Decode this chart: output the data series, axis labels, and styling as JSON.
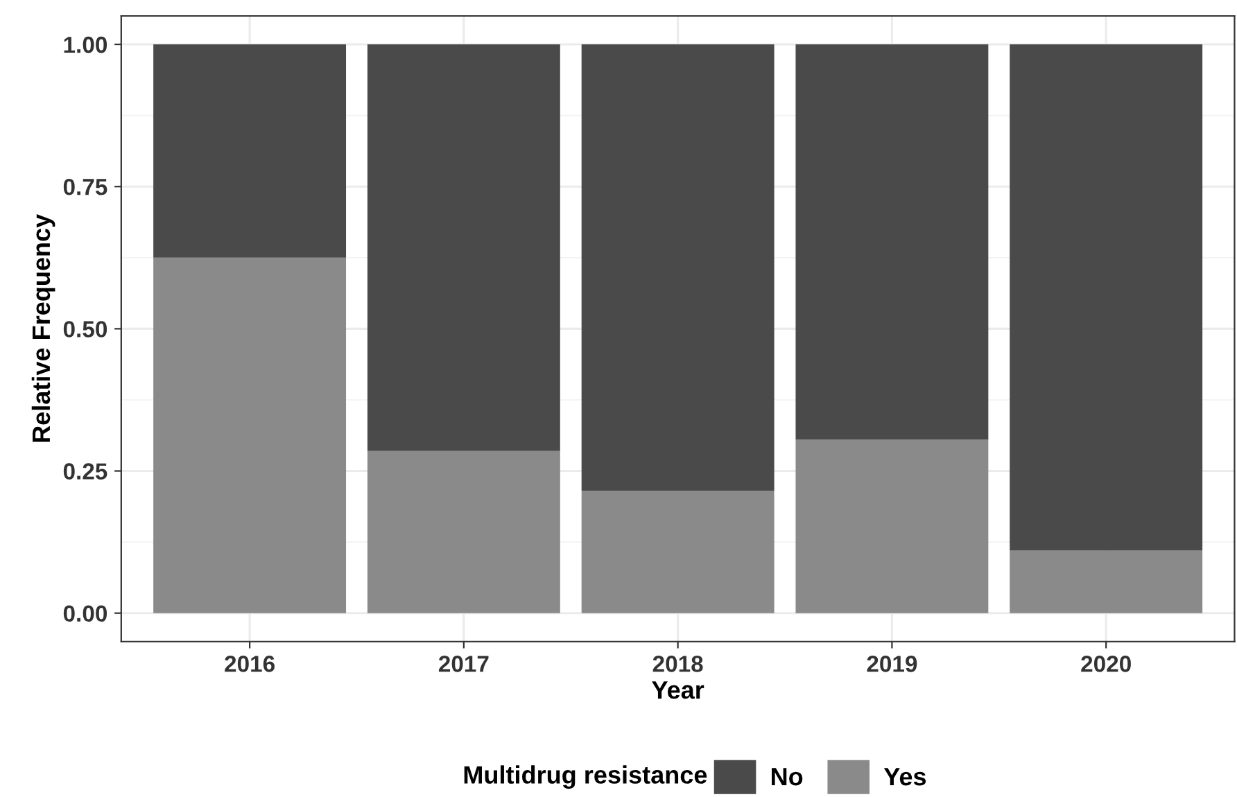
{
  "chart_data": {
    "type": "bar",
    "stacked": true,
    "xlabel": "Year",
    "ylabel": "Relative Frequency",
    "legend_title": "Multidrug resistance",
    "categories": [
      "2016",
      "2017",
      "2018",
      "2019",
      "2020"
    ],
    "series": [
      {
        "name": "Yes",
        "color": "#8a8a8a",
        "values": [
          0.625,
          0.285,
          0.215,
          0.305,
          0.11
        ]
      },
      {
        "name": "No",
        "color": "#4a4a4a",
        "values": [
          0.375,
          0.715,
          0.785,
          0.695,
          0.89
        ]
      }
    ],
    "ylim": [
      -0.05,
      1.05
    ],
    "yticks": [
      {
        "value": 0,
        "label": "0.00"
      },
      {
        "value": 0.25,
        "label": "0.25"
      },
      {
        "value": 0.5,
        "label": "0.50"
      },
      {
        "value": 0.75,
        "label": "0.75"
      },
      {
        "value": 1,
        "label": "1.00"
      }
    ],
    "grid": true,
    "legend": "bottom"
  }
}
